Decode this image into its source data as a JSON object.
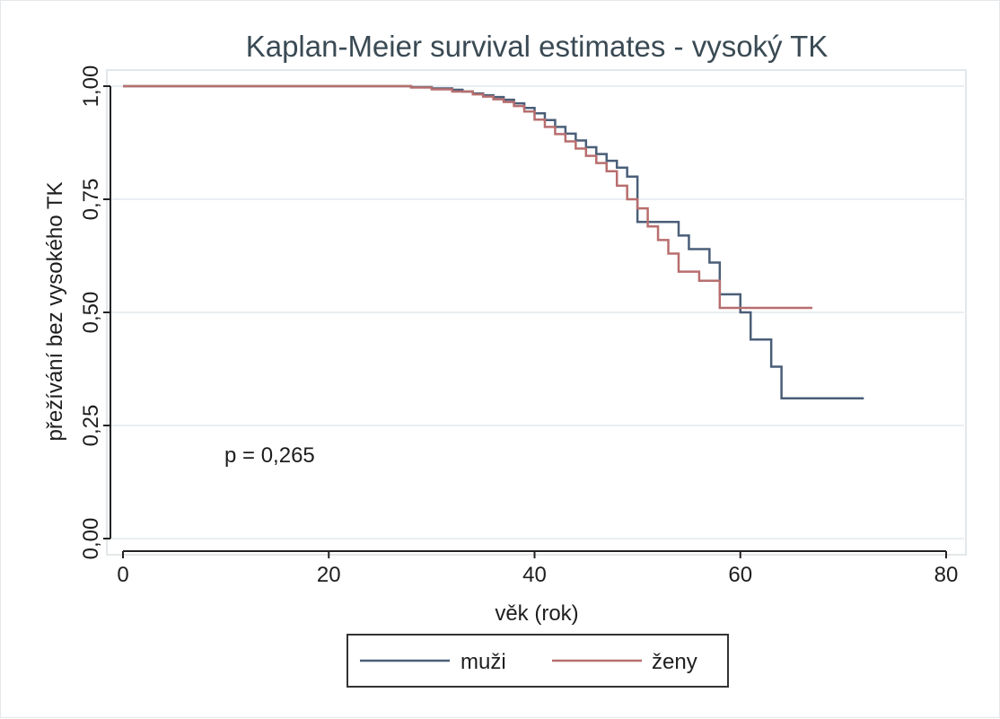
{
  "chart_data": {
    "type": "line",
    "step": true,
    "title": "Kaplan-Meier survival estimates -  vysoký TK",
    "xlabel": "věk (rok)",
    "ylabel": "přežívání bez vysokého TK",
    "xlim": [
      0,
      80
    ],
    "ylim": [
      0,
      1
    ],
    "x_ticks": [
      0,
      20,
      40,
      60,
      80
    ],
    "x_tick_labels": [
      "0",
      "20",
      "40",
      "60",
      "80"
    ],
    "y_ticks": [
      0,
      0.25,
      0.5,
      0.75,
      1
    ],
    "y_tick_labels": [
      "0,00",
      "0,25",
      "0,50",
      "0,75",
      "1,00"
    ],
    "grid": true,
    "legend_position": "bottom",
    "annotation": "p = 0,265",
    "series": [
      {
        "name": "muži",
        "color": "#4a5e78",
        "points": [
          [
            0,
            1.0
          ],
          [
            25,
            1.0
          ],
          [
            28,
            0.998
          ],
          [
            30,
            0.995
          ],
          [
            32,
            0.992
          ],
          [
            33,
            0.988
          ],
          [
            34,
            0.984
          ],
          [
            35,
            0.98
          ],
          [
            36,
            0.976
          ],
          [
            37,
            0.97
          ],
          [
            38,
            0.962
          ],
          [
            39,
            0.952
          ],
          [
            40,
            0.94
          ],
          [
            41,
            0.925
          ],
          [
            42,
            0.91
          ],
          [
            43,
            0.895
          ],
          [
            44,
            0.88
          ],
          [
            45,
            0.865
          ],
          [
            46,
            0.85
          ],
          [
            47,
            0.835
          ],
          [
            48,
            0.82
          ],
          [
            49,
            0.8
          ],
          [
            50,
            0.7
          ],
          [
            52,
            0.7
          ],
          [
            54,
            0.67
          ],
          [
            55,
            0.64
          ],
          [
            57,
            0.61
          ],
          [
            58,
            0.54
          ],
          [
            60,
            0.5
          ],
          [
            61,
            0.44
          ],
          [
            63,
            0.38
          ],
          [
            64,
            0.31
          ],
          [
            72,
            0.31
          ]
        ]
      },
      {
        "name": "ženy",
        "color": "#b86e6e",
        "points": [
          [
            0,
            1.0
          ],
          [
            25,
            1.0
          ],
          [
            28,
            0.997
          ],
          [
            30,
            0.993
          ],
          [
            32,
            0.988
          ],
          [
            34,
            0.982
          ],
          [
            35,
            0.977
          ],
          [
            36,
            0.971
          ],
          [
            37,
            0.965
          ],
          [
            38,
            0.956
          ],
          [
            39,
            0.944
          ],
          [
            40,
            0.926
          ],
          [
            41,
            0.91
          ],
          [
            42,
            0.894
          ],
          [
            43,
            0.878
          ],
          [
            44,
            0.862
          ],
          [
            45,
            0.846
          ],
          [
            46,
            0.83
          ],
          [
            47,
            0.812
          ],
          [
            48,
            0.78
          ],
          [
            49,
            0.75
          ],
          [
            50,
            0.73
          ],
          [
            51,
            0.69
          ],
          [
            52,
            0.66
          ],
          [
            53,
            0.63
          ],
          [
            54,
            0.59
          ],
          [
            56,
            0.57
          ],
          [
            58,
            0.51
          ],
          [
            67,
            0.51
          ]
        ]
      }
    ]
  }
}
